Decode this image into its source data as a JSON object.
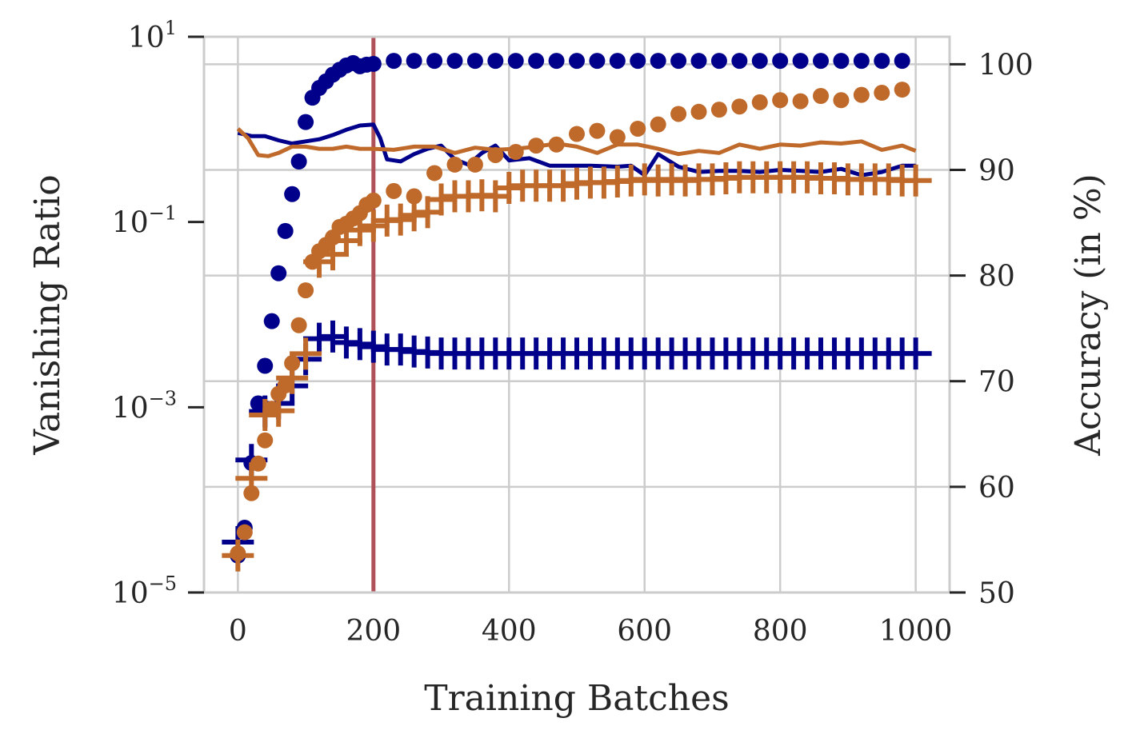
{
  "chart_data": {
    "type": "line",
    "title": "",
    "xlabel": "Training Batches",
    "ylabel_left": "Vanishing Ratio",
    "ylabel_right": "Accuracy (in %)",
    "x_ticks": [
      "0",
      "200",
      "400",
      "600",
      "800",
      "1000"
    ],
    "xlim": [
      -50,
      1050
    ],
    "y_left_scale": "log",
    "y_left_lim_exp": [
      -5,
      1
    ],
    "y_left_ticks": [
      {
        "base": "10",
        "exp": "1",
        "value": 10
      },
      {
        "base": "10",
        "exp": "−1",
        "value": 0.1
      },
      {
        "base": "10",
        "exp": "−3",
        "value": 0.001
      },
      {
        "base": "10",
        "exp": "−5",
        "value": 1e-05
      }
    ],
    "y_right_lim": [
      50,
      102.6
    ],
    "y_right_ticks": [
      "50",
      "60",
      "70",
      "80",
      "90",
      "100"
    ],
    "grid": true,
    "vline": {
      "x": 200,
      "color": "#b05058"
    },
    "colors": {
      "blue": "#00008b",
      "orange": "#bf6a2a",
      "grid": "#cccccc",
      "spine": "#cccccc",
      "text": "#262626"
    },
    "series": [
      {
        "id": "blue_dots",
        "color": "#00008b",
        "marker": "circle",
        "axis": "left",
        "x": [
          0,
          10,
          20,
          30,
          40,
          50,
          60,
          70,
          80,
          90,
          100,
          110,
          120,
          130,
          140,
          150,
          160,
          170,
          180,
          190,
          200,
          230,
          260,
          290,
          320,
          350,
          380,
          410,
          440,
          470,
          500,
          530,
          560,
          590,
          620,
          650,
          680,
          710,
          740,
          770,
          800,
          830,
          860,
          890,
          920,
          950,
          980
        ],
        "y": [
          2.5e-05,
          5e-05,
          0.00025,
          0.0011,
          0.0028,
          0.0085,
          0.028,
          0.08,
          0.2,
          0.45,
          1.2,
          2.2,
          2.8,
          3.3,
          3.9,
          4.4,
          4.9,
          5.2,
          4.8,
          5.0,
          5.1,
          5.5,
          5.5,
          5.5,
          5.5,
          5.5,
          5.5,
          5.5,
          5.5,
          5.5,
          5.5,
          5.5,
          5.5,
          5.5,
          5.5,
          5.5,
          5.5,
          5.5,
          5.5,
          5.5,
          5.5,
          5.5,
          5.5,
          5.5,
          5.5,
          5.5,
          5.5
        ]
      },
      {
        "id": "blue_plus",
        "color": "#00008b",
        "marker": "plus",
        "axis": "left",
        "x": [
          0,
          20,
          40,
          60,
          80,
          100,
          120,
          140,
          160,
          180,
          200,
          220,
          240,
          260,
          280,
          300,
          320,
          340,
          360,
          380,
          400,
          420,
          440,
          460,
          480,
          500,
          520,
          540,
          560,
          580,
          600,
          620,
          640,
          660,
          680,
          700,
          720,
          740,
          760,
          780,
          800,
          820,
          840,
          860,
          880,
          900,
          920,
          940,
          960,
          980,
          1000
        ],
        "y": [
          3.5e-05,
          0.00027,
          0.0009,
          0.0011,
          0.0017,
          0.0033,
          0.0055,
          0.0058,
          0.005,
          0.0048,
          0.0045,
          0.0042,
          0.0042,
          0.004,
          0.0039,
          0.0038,
          0.0038,
          0.0038,
          0.0038,
          0.0038,
          0.0038,
          0.0038,
          0.0038,
          0.0038,
          0.0038,
          0.0038,
          0.0038,
          0.0038,
          0.0038,
          0.0038,
          0.0038,
          0.0038,
          0.0038,
          0.0038,
          0.0038,
          0.0038,
          0.0038,
          0.0038,
          0.0038,
          0.0038,
          0.0038,
          0.0038,
          0.0038,
          0.0038,
          0.0038,
          0.0038,
          0.0038,
          0.0038,
          0.0038,
          0.0038,
          0.0038
        ]
      },
      {
        "id": "blue_line",
        "color": "#00008b",
        "marker": "none",
        "axis": "right",
        "x": [
          0,
          20,
          40,
          60,
          80,
          100,
          120,
          140,
          160,
          180,
          200,
          210,
          220,
          240,
          260,
          280,
          300,
          320,
          340,
          360,
          380,
          400,
          430,
          460,
          490,
          520,
          560,
          580,
          600,
          620,
          650,
          680,
          710,
          740,
          770,
          800,
          830,
          860,
          890,
          920,
          950,
          980,
          1000
        ],
        "y": [
          93.5,
          93.2,
          93.2,
          92.8,
          92.5,
          92.7,
          92.9,
          93.3,
          93.8,
          94.2,
          94.3,
          93.0,
          91.0,
          90.8,
          91.5,
          92.0,
          92.3,
          91.0,
          90.5,
          91.6,
          92.3,
          90.9,
          91.1,
          90.4,
          90.4,
          90.4,
          90.3,
          90.4,
          89.5,
          91.5,
          90.3,
          89.8,
          89.9,
          89.9,
          89.8,
          90.0,
          89.9,
          89.8,
          90.1,
          89.5,
          89.8,
          90.4,
          90.4
        ]
      },
      {
        "id": "orange_dots",
        "color": "#bf6a2a",
        "marker": "circle",
        "axis": "right",
        "x": [
          0,
          10,
          20,
          30,
          40,
          50,
          60,
          70,
          80,
          90,
          100,
          110,
          120,
          130,
          140,
          150,
          160,
          170,
          180,
          190,
          200,
          230,
          260,
          290,
          320,
          350,
          380,
          410,
          440,
          470,
          500,
          530,
          560,
          590,
          620,
          650,
          680,
          710,
          740,
          770,
          800,
          830,
          860,
          890,
          920,
          950,
          980
        ],
        "y": [
          53.7,
          55.7,
          59.4,
          62.2,
          64.4,
          67.4,
          68.8,
          69.6,
          71.7,
          75.3,
          78.6,
          81.3,
          82.3,
          82.9,
          83.6,
          84.6,
          84.9,
          85.4,
          85.9,
          86.7,
          87.1,
          88.0,
          87.5,
          89.7,
          90.5,
          90.5,
          91.4,
          91.7,
          92.3,
          92.4,
          93.4,
          93.7,
          93.1,
          93.9,
          94.3,
          95.3,
          95.5,
          95.7,
          96.0,
          96.4,
          96.6,
          96.5,
          97.0,
          96.6,
          97.1,
          97.3,
          97.6
        ]
      },
      {
        "id": "orange_plus",
        "color": "#bf6a2a",
        "marker": "plus",
        "axis": "right",
        "x": [
          0,
          20,
          40,
          60,
          80,
          100,
          120,
          140,
          160,
          180,
          200,
          220,
          240,
          260,
          280,
          300,
          320,
          340,
          360,
          380,
          400,
          420,
          440,
          460,
          480,
          500,
          520,
          540,
          560,
          580,
          600,
          620,
          640,
          660,
          680,
          700,
          720,
          740,
          760,
          780,
          800,
          820,
          840,
          860,
          880,
          900,
          920,
          940,
          960,
          980,
          1000
        ],
        "y": [
          53.5,
          60.8,
          66.8,
          67.2,
          70.3,
          72.6,
          81.3,
          82.0,
          83.3,
          84.3,
          84.7,
          85.2,
          85.3,
          85.7,
          86.0,
          87.2,
          87.5,
          87.5,
          87.6,
          87.5,
          88.3,
          88.5,
          88.5,
          88.5,
          88.5,
          88.7,
          88.8,
          88.8,
          88.9,
          89.0,
          89.1,
          89.0,
          89.1,
          89.0,
          89.1,
          89.1,
          89.2,
          89.3,
          89.3,
          89.3,
          89.3,
          89.3,
          89.3,
          89.2,
          89.2,
          89.1,
          89.1,
          89.1,
          89.1,
          89.0,
          89.0
        ]
      },
      {
        "id": "orange_line",
        "color": "#bf6a2a",
        "marker": "none",
        "axis": "right",
        "x": [
          0,
          15,
          30,
          45,
          60,
          80,
          100,
          120,
          140,
          160,
          180,
          200,
          230,
          260,
          290,
          320,
          350,
          380,
          410,
          440,
          470,
          500,
          530,
          560,
          590,
          620,
          650,
          680,
          710,
          740,
          770,
          800,
          830,
          860,
          890,
          920,
          950,
          980,
          1000
        ],
        "y": [
          93.9,
          93.0,
          91.4,
          91.3,
          91.6,
          92.2,
          92.2,
          92.0,
          92.0,
          92.2,
          92.0,
          92.0,
          91.9,
          92.2,
          92.2,
          91.6,
          92.1,
          91.9,
          92.0,
          92.2,
          92.5,
          92.2,
          91.6,
          92.4,
          92.4,
          92.0,
          91.5,
          91.8,
          91.6,
          92.4,
          92.0,
          92.4,
          92.3,
          92.6,
          92.5,
          92.7,
          91.9,
          92.3,
          91.8
        ]
      }
    ]
  }
}
